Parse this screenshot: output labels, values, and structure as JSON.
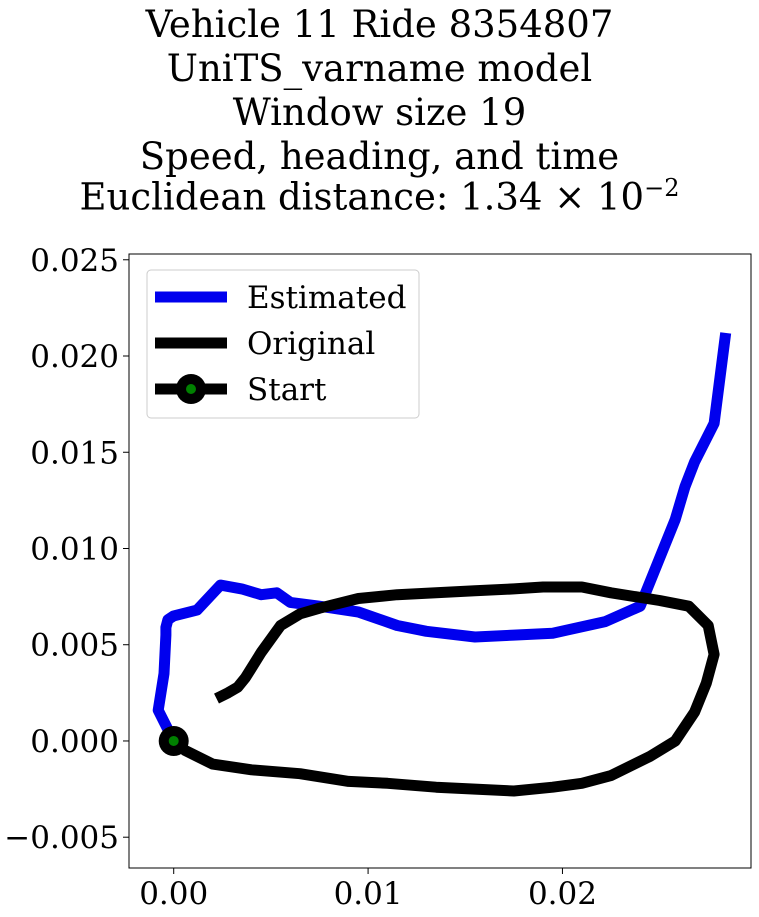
{
  "chart_data": {
    "type": "line",
    "title": [
      "Vehicle 11 Ride 8354807",
      "UniTS_varname model",
      "Window size 19",
      "Speed, heading, and time"
    ],
    "title_distance_prefix": "Euclidean distance: 1.34 × 10",
    "title_distance_exponent": "−2",
    "xlim": [
      -0.0023,
      0.0297
    ],
    "ylim": [
      -0.0066,
      0.0253
    ],
    "xticks": [
      0.0,
      0.01,
      0.02
    ],
    "xtick_labels": [
      "0.00",
      "0.01",
      "0.02"
    ],
    "yticks": [
      -0.005,
      0.0,
      0.005,
      0.01,
      0.015,
      0.02,
      0.025
    ],
    "ytick_labels": [
      "−0.005",
      "0.000",
      "0.005",
      "0.010",
      "0.015",
      "0.020",
      "0.025"
    ],
    "grid": false,
    "legend_position": "upper-left",
    "legend": [
      "Estimated",
      "Original",
      "Start"
    ],
    "colors": {
      "estimated": "#0000ee",
      "original": "#000000",
      "start_marker_fill": "#008000"
    },
    "series": [
      {
        "name": "Estimated",
        "x": [
          0.0,
          -0.0008,
          -0.0005,
          -0.0004,
          -0.0004,
          -0.0003,
          0.0,
          0.0012,
          0.0024,
          0.0035,
          0.0045,
          0.0053,
          0.006,
          0.0075,
          0.0095,
          0.0115,
          0.013,
          0.0155,
          0.0175,
          0.0195,
          0.0222,
          0.024,
          0.0258,
          0.0263,
          0.0268,
          0.0278,
          0.0284
        ],
        "y": [
          0.0,
          0.0016,
          0.0035,
          0.0055,
          0.0059,
          0.0063,
          0.0065,
          0.0068,
          0.0081,
          0.0079,
          0.0076,
          0.0077,
          0.0072,
          0.007,
          0.0067,
          0.006,
          0.0057,
          0.0054,
          0.0055,
          0.0056,
          0.0062,
          0.007,
          0.0115,
          0.0132,
          0.0145,
          0.0165,
          0.0212
        ]
      },
      {
        "name": "Original",
        "x": [
          0.0,
          0.0006,
          0.002,
          0.004,
          0.0065,
          0.009,
          0.011,
          0.0135,
          0.0155,
          0.0175,
          0.0195,
          0.021,
          0.0225,
          0.0245,
          0.0258,
          0.0268,
          0.0274,
          0.0278,
          0.0275,
          0.0265,
          0.025,
          0.0225,
          0.021,
          0.019,
          0.0175,
          0.0155,
          0.0135,
          0.0115,
          0.0105,
          0.0095,
          0.0075,
          0.0065,
          0.0055,
          0.0045,
          0.0037,
          0.0033,
          0.0028,
          0.0022
        ],
        "y": [
          0.0,
          -0.0005,
          -0.0012,
          -0.0015,
          -0.0017,
          -0.0021,
          -0.0022,
          -0.0024,
          -0.0025,
          -0.0026,
          -0.0024,
          -0.0022,
          -0.0018,
          -0.0008,
          0.0,
          0.0015,
          0.003,
          0.0045,
          0.006,
          0.007,
          0.0073,
          0.0077,
          0.008,
          0.008,
          0.0079,
          0.0078,
          0.0077,
          0.0076,
          0.0075,
          0.0074,
          0.0069,
          0.0066,
          0.006,
          0.0046,
          0.0033,
          0.0028,
          0.0025,
          0.0022
        ]
      }
    ],
    "start_point": {
      "x": 0.0,
      "y": 0.0
    }
  }
}
